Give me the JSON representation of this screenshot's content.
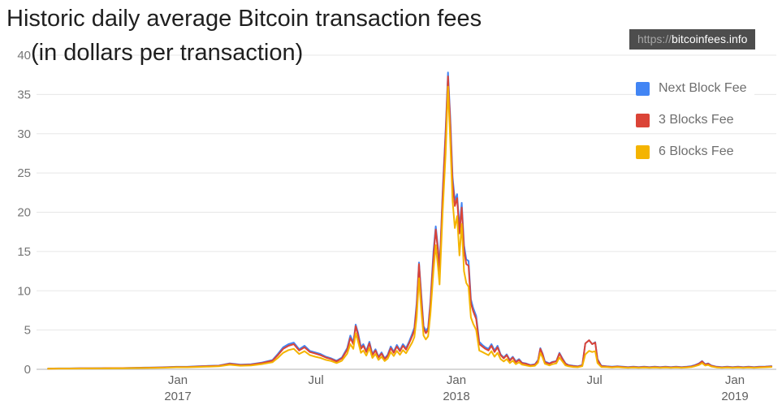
{
  "page": {
    "title_line1": "Historic daily average Bitcoin transaction fees",
    "title_line2": "(in dollars per transaction)",
    "url_badge": {
      "scheme": "https://",
      "host": "bitcoinfees.info"
    }
  },
  "colors": {
    "next_block": "#4285F4",
    "three_blocks": "#DB4437",
    "six_blocks": "#F4B400",
    "gridline": "#e7e7e7",
    "zero_line": "#b0b0b0",
    "axis_text": "#757575",
    "badge_bg": "#4d4d4d"
  },
  "chart_data": {
    "type": "line",
    "title": "Historic daily average Bitcoin transaction fees (in dollars per transaction)",
    "xlabel": "",
    "ylabel": "",
    "grid": "horizontal",
    "legend_position": "right-top",
    "y_axis": {
      "range": [
        0,
        40
      ],
      "ticks": [
        0,
        5,
        10,
        15,
        20,
        25,
        30,
        35,
        40
      ]
    },
    "x_axis": {
      "epoch_day0": "2016-07-15",
      "range_days": [
        0,
        948
      ],
      "ticks": [
        {
          "month": "Jan",
          "year": "2017",
          "day": 170
        },
        {
          "month": "Jul",
          "year": "",
          "day": 351
        },
        {
          "month": "Jan",
          "year": "2018",
          "day": 535
        },
        {
          "month": "Jul",
          "year": "",
          "day": 716
        },
        {
          "month": "Jan",
          "year": "2019",
          "day": 900
        }
      ]
    },
    "series": [
      {
        "name": "Next Block Fee",
        "color": "#4285F4",
        "col": 1
      },
      {
        "name": "3 Blocks Fee",
        "color": "#DB4437",
        "col": 2
      },
      {
        "name": "6 Blocks Fee",
        "color": "#F4B400",
        "col": 3
      }
    ],
    "points_format": [
      "day_offset",
      "next_block_fee",
      "three_blocks_fee",
      "six_blocks_fee"
    ],
    "points": [
      [
        0,
        0.09,
        0.08,
        0.07
      ],
      [
        14,
        0.11,
        0.1,
        0.09
      ],
      [
        28,
        0.11,
        0.1,
        0.09
      ],
      [
        42,
        0.13,
        0.12,
        0.1
      ],
      [
        56,
        0.13,
        0.12,
        0.11
      ],
      [
        70,
        0.14,
        0.13,
        0.11
      ],
      [
        84,
        0.16,
        0.15,
        0.13
      ],
      [
        98,
        0.16,
        0.15,
        0.13
      ],
      [
        112,
        0.19,
        0.18,
        0.15
      ],
      [
        126,
        0.22,
        0.2,
        0.17
      ],
      [
        140,
        0.24,
        0.22,
        0.19
      ],
      [
        154,
        0.27,
        0.25,
        0.21
      ],
      [
        168,
        0.32,
        0.3,
        0.26
      ],
      [
        182,
        0.32,
        0.3,
        0.26
      ],
      [
        196,
        0.38,
        0.35,
        0.3
      ],
      [
        210,
        0.43,
        0.4,
        0.34
      ],
      [
        224,
        0.48,
        0.45,
        0.38
      ],
      [
        238,
        0.75,
        0.7,
        0.58
      ],
      [
        252,
        0.59,
        0.55,
        0.45
      ],
      [
        266,
        0.65,
        0.6,
        0.5
      ],
      [
        280,
        0.86,
        0.8,
        0.66
      ],
      [
        294,
        1.18,
        1.1,
        0.9
      ],
      [
        301,
        1.95,
        1.8,
        1.45
      ],
      [
        308,
        2.8,
        2.6,
        2.1
      ],
      [
        315,
        3.2,
        3.0,
        2.45
      ],
      [
        322,
        3.4,
        3.2,
        2.6
      ],
      [
        329,
        2.55,
        2.4,
        1.95
      ],
      [
        336,
        3.0,
        2.8,
        2.3
      ],
      [
        343,
        2.35,
        2.2,
        1.8
      ],
      [
        350,
        2.15,
        2.0,
        1.6
      ],
      [
        357,
        1.95,
        1.8,
        1.45
      ],
      [
        364,
        1.6,
        1.5,
        1.2
      ],
      [
        371,
        1.4,
        1.3,
        1.05
      ],
      [
        378,
        1.1,
        1.0,
        0.8
      ],
      [
        385,
        1.5,
        1.4,
        1.1
      ],
      [
        392,
        2.7,
        2.5,
        2.0
      ],
      [
        396,
        4.3,
        4.0,
        3.2
      ],
      [
        400,
        3.4,
        3.2,
        2.6
      ],
      [
        403,
        5.7,
        5.5,
        4.6
      ],
      [
        406,
        4.7,
        4.4,
        3.6
      ],
      [
        410,
        2.8,
        2.6,
        2.1
      ],
      [
        413,
        3.2,
        3.0,
        2.4
      ],
      [
        417,
        2.35,
        2.2,
        1.75
      ],
      [
        421,
        3.5,
        3.3,
        2.7
      ],
      [
        425,
        1.95,
        1.8,
        1.45
      ],
      [
        429,
        2.55,
        2.4,
        1.95
      ],
      [
        433,
        1.6,
        1.5,
        1.2
      ],
      [
        437,
        2.15,
        2.0,
        1.6
      ],
      [
        441,
        1.4,
        1.3,
        1.05
      ],
      [
        445,
        1.85,
        1.7,
        1.35
      ],
      [
        449,
        2.9,
        2.7,
        2.2
      ],
      [
        453,
        2.25,
        2.1,
        1.7
      ],
      [
        457,
        3.1,
        2.9,
        2.35
      ],
      [
        461,
        2.45,
        2.3,
        1.85
      ],
      [
        465,
        3.2,
        3.0,
        2.45
      ],
      [
        469,
        2.7,
        2.5,
        2.05
      ],
      [
        473,
        3.5,
        3.3,
        2.7
      ],
      [
        477,
        4.5,
        4.2,
        3.4
      ],
      [
        480,
        5.3,
        5.0,
        4.1
      ],
      [
        483,
        8.4,
        8.0,
        6.6
      ],
      [
        486,
        13.6,
        13.4,
        11.6
      ],
      [
        489,
        9.5,
        9.0,
        7.5
      ],
      [
        492,
        5.5,
        5.2,
        4.3
      ],
      [
        495,
        4.9,
        4.6,
        3.8
      ],
      [
        498,
        5.3,
        5.0,
        4.2
      ],
      [
        501,
        8.6,
        8.2,
        7.0
      ],
      [
        505,
        15.0,
        14.3,
        12.5
      ],
      [
        508,
        18.2,
        17.8,
        15.8
      ],
      [
        511,
        15.5,
        15.0,
        13.0
      ],
      [
        513,
        12.8,
        12.3,
        10.8
      ],
      [
        517,
        22.5,
        22.0,
        20.0
      ],
      [
        521,
        30.5,
        30.0,
        27.5
      ],
      [
        524,
        37.8,
        37.3,
        36.0
      ],
      [
        527,
        32.0,
        31.3,
        29.0
      ],
      [
        530,
        24.5,
        23.8,
        21.5
      ],
      [
        533,
        21.5,
        20.8,
        18.0
      ],
      [
        536,
        22.3,
        21.8,
        19.5
      ],
      [
        539,
        18.0,
        17.3,
        14.5
      ],
      [
        542,
        21.2,
        20.6,
        18.5
      ],
      [
        545,
        15.8,
        15.2,
        12.5
      ],
      [
        548,
        14.0,
        13.4,
        11.0
      ],
      [
        551,
        13.8,
        13.2,
        10.5
      ],
      [
        554,
        8.9,
        8.4,
        6.6
      ],
      [
        557,
        7.8,
        7.4,
        5.8
      ],
      [
        561,
        6.8,
        6.4,
        5.0
      ],
      [
        565,
        3.5,
        3.2,
        2.4
      ],
      [
        569,
        3.1,
        2.9,
        2.2
      ],
      [
        573,
        2.8,
        2.6,
        2.0
      ],
      [
        577,
        2.6,
        2.4,
        1.8
      ],
      [
        581,
        3.2,
        3.0,
        2.3
      ],
      [
        585,
        2.4,
        2.2,
        1.6
      ],
      [
        589,
        3.0,
        2.8,
        2.1
      ],
      [
        593,
        1.9,
        1.8,
        1.3
      ],
      [
        597,
        1.5,
        1.4,
        1.0
      ],
      [
        601,
        1.9,
        1.8,
        1.3
      ],
      [
        605,
        1.2,
        1.1,
        0.8
      ],
      [
        609,
        1.6,
        1.5,
        1.1
      ],
      [
        613,
        1.0,
        0.9,
        0.65
      ],
      [
        617,
        1.3,
        1.2,
        0.9
      ],
      [
        621,
        0.85,
        0.8,
        0.6
      ],
      [
        626,
        0.75,
        0.7,
        0.5
      ],
      [
        632,
        0.55,
        0.5,
        0.38
      ],
      [
        638,
        0.65,
        0.6,
        0.45
      ],
      [
        642,
        1.2,
        1.1,
        0.85
      ],
      [
        645,
        2.7,
        2.6,
        2.1
      ],
      [
        648,
        2.0,
        1.9,
        1.5
      ],
      [
        651,
        1.0,
        0.9,
        0.7
      ],
      [
        657,
        0.75,
        0.7,
        0.5
      ],
      [
        661,
        0.95,
        0.9,
        0.65
      ],
      [
        666,
        1.05,
        1.0,
        0.75
      ],
      [
        670,
        2.1,
        2.0,
        1.5
      ],
      [
        674,
        1.4,
        1.3,
        1.0
      ],
      [
        678,
        0.75,
        0.7,
        0.5
      ],
      [
        682,
        0.55,
        0.5,
        0.38
      ],
      [
        688,
        0.45,
        0.4,
        0.3
      ],
      [
        694,
        0.38,
        0.35,
        0.27
      ],
      [
        700,
        0.55,
        0.5,
        0.4
      ],
      [
        704,
        3.3,
        3.3,
        1.9
      ],
      [
        709,
        3.7,
        3.7,
        2.35
      ],
      [
        713,
        3.2,
        3.2,
        2.2
      ],
      [
        717,
        3.45,
        3.4,
        2.3
      ],
      [
        720,
        1.3,
        1.2,
        0.8
      ],
      [
        725,
        0.45,
        0.4,
        0.3
      ],
      [
        732,
        0.38,
        0.35,
        0.28
      ],
      [
        739,
        0.33,
        0.3,
        0.24
      ],
      [
        746,
        0.38,
        0.35,
        0.28
      ],
      [
        753,
        0.33,
        0.3,
        0.24
      ],
      [
        760,
        0.28,
        0.25,
        0.2
      ],
      [
        767,
        0.33,
        0.3,
        0.24
      ],
      [
        774,
        0.28,
        0.25,
        0.2
      ],
      [
        781,
        0.33,
        0.3,
        0.24
      ],
      [
        788,
        0.28,
        0.25,
        0.2
      ],
      [
        795,
        0.33,
        0.3,
        0.24
      ],
      [
        802,
        0.28,
        0.25,
        0.2
      ],
      [
        809,
        0.33,
        0.3,
        0.24
      ],
      [
        816,
        0.28,
        0.25,
        0.2
      ],
      [
        823,
        0.33,
        0.3,
        0.24
      ],
      [
        830,
        0.28,
        0.25,
        0.2
      ],
      [
        837,
        0.33,
        0.3,
        0.24
      ],
      [
        843,
        0.4,
        0.35,
        0.28
      ],
      [
        848,
        0.55,
        0.5,
        0.4
      ],
      [
        853,
        0.75,
        0.7,
        0.55
      ],
      [
        857,
        1.05,
        1.0,
        0.8
      ],
      [
        861,
        0.65,
        0.6,
        0.48
      ],
      [
        865,
        0.75,
        0.7,
        0.55
      ],
      [
        869,
        0.5,
        0.45,
        0.36
      ],
      [
        876,
        0.33,
        0.3,
        0.24
      ],
      [
        883,
        0.28,
        0.25,
        0.2
      ],
      [
        890,
        0.33,
        0.3,
        0.24
      ],
      [
        897,
        0.28,
        0.25,
        0.2
      ],
      [
        904,
        0.33,
        0.3,
        0.24
      ],
      [
        911,
        0.28,
        0.25,
        0.2
      ],
      [
        918,
        0.33,
        0.3,
        0.24
      ],
      [
        925,
        0.28,
        0.25,
        0.2
      ],
      [
        932,
        0.33,
        0.3,
        0.24
      ],
      [
        940,
        0.35,
        0.32,
        0.26
      ],
      [
        948,
        0.4,
        0.36,
        0.3
      ]
    ]
  }
}
